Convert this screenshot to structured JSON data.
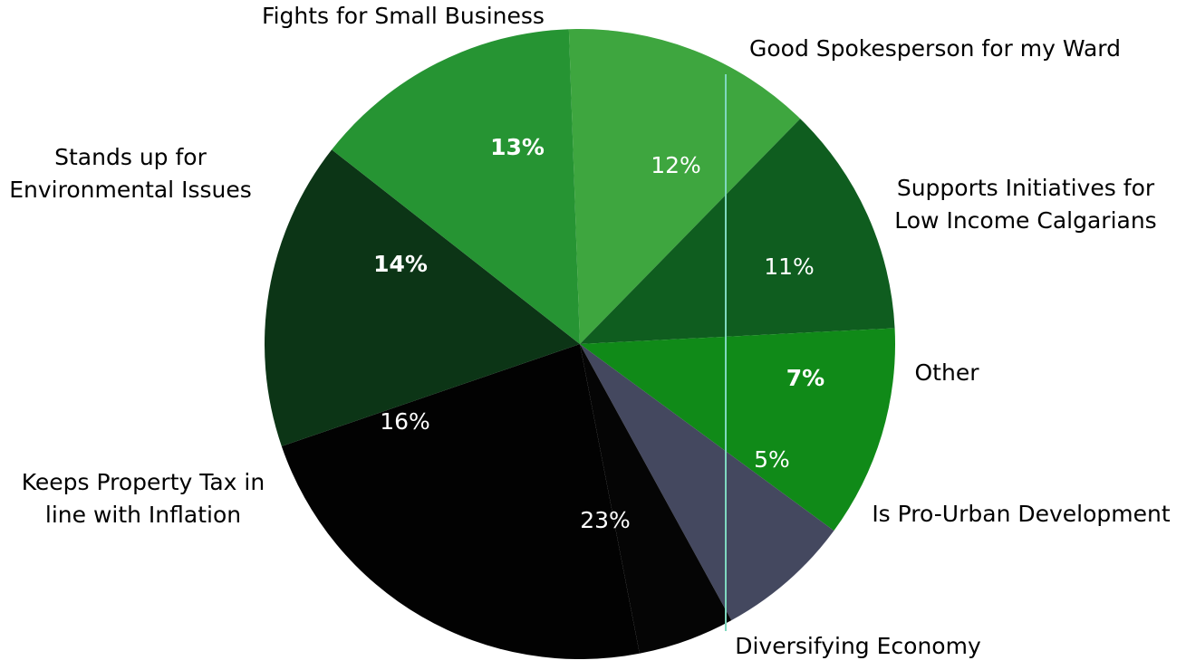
{
  "chart_data": {
    "type": "pie",
    "categories": [
      "Fights for Small Business",
      "Good Spokesperson for my Ward",
      "Supports Initiatives for Low Income Calgarians",
      "Other",
      "Is Pro-Urban Development",
      "Diversifying Economy",
      "Keeps Property Tax in line with Inflation",
      "Stands up for Environmental Issues"
    ],
    "values": [
      13,
      12,
      11,
      7,
      5,
      23,
      16,
      14
    ],
    "value_labels": [
      "13%",
      "12%",
      "11%",
      "7%",
      "5%",
      "23%",
      "16%",
      "14%"
    ],
    "colors": [
      "#3ea63f",
      "#0f5d1f",
      "#108a18",
      "#44485f",
      "#050505",
      "#020202",
      "#0c3516",
      "#269433"
    ],
    "legend_labels": [
      "Fights for Small Business",
      "Good Spokesperson for my Ward",
      "Supports Initiatives for\nLow Income Calgarians",
      "Other",
      "Is Pro-Urban Development",
      "Diversifying Economy",
      "Keeps Property Tax in\nline with Inflation",
      "Stands up for\nEnvironmental Issues"
    ],
    "title": "",
    "legend": "callout labels"
  }
}
